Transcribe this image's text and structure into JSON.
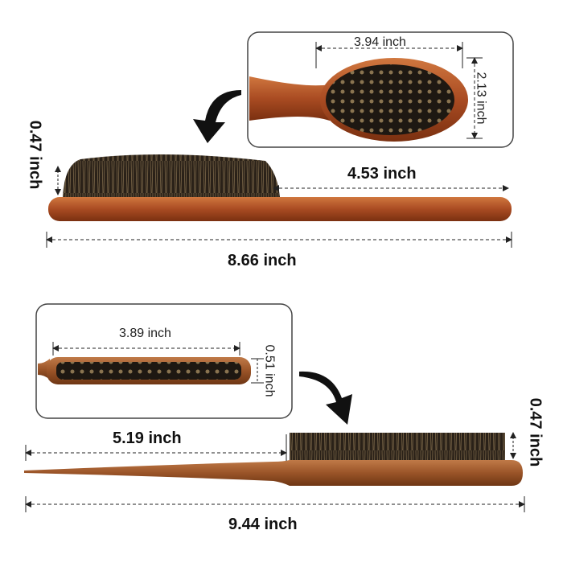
{
  "brush1": {
    "inset": {
      "width": "3.94 inch",
      "height": "2.13 inch"
    },
    "bristle_height": "0.47 inch",
    "handle_length": "4.53 inch",
    "total_length": "8.66 inch"
  },
  "brush2": {
    "inset": {
      "width": "3.89 inch",
      "height": "0.51 inch"
    },
    "bristle_height": "0.47 inch",
    "handle_length": "5.19 inch",
    "total_length": "9.44 inch"
  },
  "colors": {
    "wood": "#b0562a",
    "bristle": "#2a2118",
    "dimension_line": "#222222"
  }
}
